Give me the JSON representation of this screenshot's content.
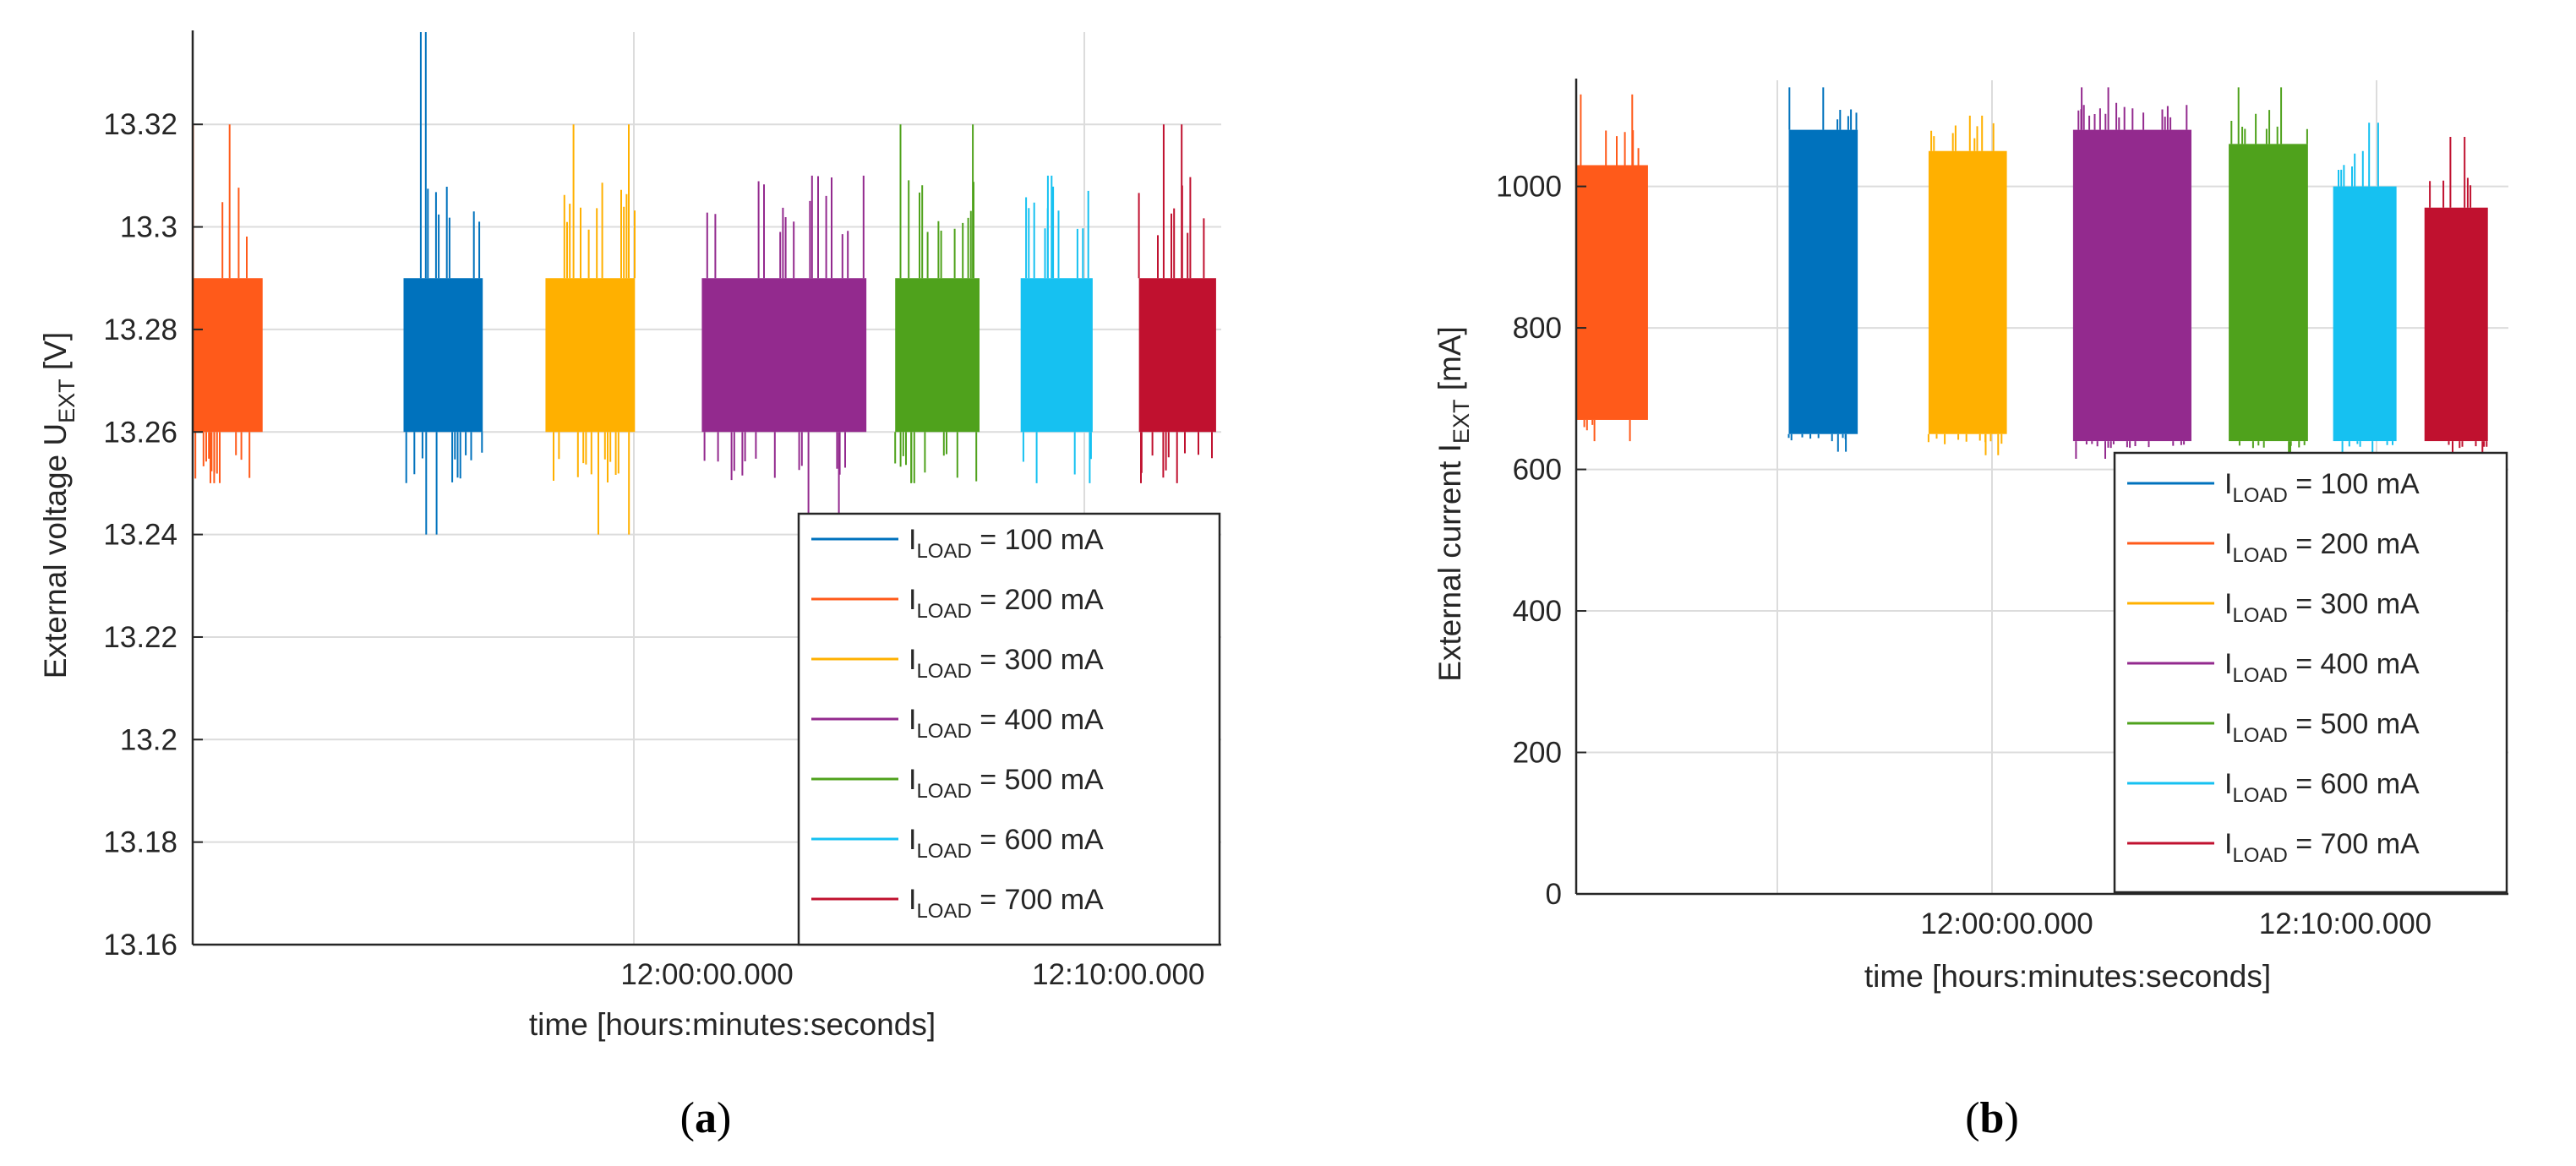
{
  "chart_data": [
    {
      "type": "line",
      "panel_label": "(a)",
      "ylabel_main": "External voltage U",
      "ylabel_sub": "EXT",
      "ylabel_unit": "[V]",
      "xlabel": "time [hours:minutes:seconds]",
      "ylim": [
        13.16,
        13.338
      ],
      "yticks": [
        "13.16",
        "13.18",
        "13.2",
        "13.22",
        "13.24",
        "13.26",
        "13.28",
        "13.3",
        "13.32"
      ],
      "xlim": [
        0,
        1
      ],
      "xticks": [
        {
          "x": 0.5,
          "label": "12:00:00.000"
        },
        {
          "x": 0.9,
          "label": "12:10:00.000"
        }
      ],
      "grid": true,
      "legend_position": "bottom-right",
      "series": [
        {
          "name": "I_LOAD = 100 mA",
          "label_main": "I",
          "label_sub": "LOAD",
          "label_rest": " = 100 mA",
          "color": "#0072BD",
          "x_range": [
            0.205,
            0.282
          ],
          "band": [
            13.26,
            13.29
          ],
          "outer": [
            13.25,
            13.31
          ],
          "extremes": [
            13.24,
            13.338
          ]
        },
        {
          "name": "I_LOAD = 200 mA",
          "label_main": "I",
          "label_sub": "LOAD",
          "label_rest": " = 200 mA",
          "color": "#FF5A1A",
          "x_range": [
            0.0,
            0.068
          ],
          "band": [
            13.26,
            13.29
          ],
          "outer": [
            13.25,
            13.31
          ],
          "extremes": [
            13.25,
            13.32
          ]
        },
        {
          "name": "I_LOAD = 300 mA",
          "label_main": "I",
          "label_sub": "LOAD",
          "label_rest": " = 300 mA",
          "color": "#FFB000",
          "x_range": [
            0.343,
            0.43
          ],
          "band": [
            13.26,
            13.29
          ],
          "outer": [
            13.25,
            13.31
          ],
          "extremes": [
            13.24,
            13.32
          ]
        },
        {
          "name": "I_LOAD = 400 mA",
          "label_main": "I",
          "label_sub": "LOAD",
          "label_rest": " = 400 mA",
          "color": "#932A8E",
          "x_range": [
            0.495,
            0.655
          ],
          "band": [
            13.26,
            13.29
          ],
          "outer": [
            13.25,
            13.31
          ],
          "extremes": [
            13.24,
            13.31
          ]
        },
        {
          "name": "I_LOAD = 500 mA",
          "label_main": "I",
          "label_sub": "LOAD",
          "label_rest": " = 500 mA",
          "color": "#4FA21C",
          "x_range": [
            0.683,
            0.765
          ],
          "band": [
            13.26,
            13.29
          ],
          "outer": [
            13.25,
            13.31
          ],
          "extremes": [
            13.25,
            13.32
          ]
        },
        {
          "name": "I_LOAD = 600 mA",
          "label_main": "I",
          "label_sub": "LOAD",
          "label_rest": " = 600 mA",
          "color": "#16C1F1",
          "x_range": [
            0.805,
            0.875
          ],
          "band": [
            13.26,
            13.29
          ],
          "outer": [
            13.25,
            13.31
          ],
          "extremes": [
            13.25,
            13.31
          ]
        },
        {
          "name": "I_LOAD = 700 mA",
          "label_main": "I",
          "label_sub": "LOAD",
          "label_rest": " = 700 mA",
          "color": "#C0112F",
          "x_range": [
            0.92,
            0.995
          ],
          "band": [
            13.26,
            13.29
          ],
          "outer": [
            13.25,
            13.31
          ],
          "extremes": [
            13.25,
            13.32
          ]
        }
      ]
    },
    {
      "type": "line",
      "panel_label": "(b)",
      "ylabel_main": "External current I",
      "ylabel_sub": "EXT",
      "ylabel_unit": "[mA]",
      "xlabel": "time [hours:minutes:seconds]",
      "ylim": [
        0,
        1150
      ],
      "yticks": [
        "0",
        "200",
        "400",
        "600",
        "800",
        "1000"
      ],
      "xlim": [
        0,
        1
      ],
      "xticks": [
        {
          "x": 0.462,
          "label": "12:00:00.000"
        },
        {
          "x": 0.825,
          "label": "12:10:00.000"
        }
      ],
      "grid": true,
      "legend_position": "bottom-right",
      "series": [
        {
          "name": "I_LOAD = 100 mA",
          "label_main": "I",
          "label_sub": "LOAD",
          "label_rest": " = 100 mA",
          "color": "#0072BD",
          "x_range": [
            0.228,
            0.302
          ],
          "band": [
            650,
            1080
          ],
          "outer": [
            640,
            1110
          ],
          "extremes": [
            625,
            1140
          ]
        },
        {
          "name": "I_LOAD = 200 mA",
          "label_main": "I",
          "label_sub": "LOAD",
          "label_rest": " = 200 mA",
          "color": "#FF5A1A",
          "x_range": [
            0.0,
            0.077
          ],
          "band": [
            670,
            1030
          ],
          "outer": [
            655,
            1080
          ],
          "extremes": [
            640,
            1130
          ]
        },
        {
          "name": "I_LOAD = 300 mA",
          "label_main": "I",
          "label_sub": "LOAD",
          "label_rest": " = 300 mA",
          "color": "#FFB000",
          "x_range": [
            0.378,
            0.462
          ],
          "band": [
            650,
            1050
          ],
          "outer": [
            635,
            1090
          ],
          "extremes": [
            620,
            1100
          ]
        },
        {
          "name": "I_LOAD = 400 mA",
          "label_main": "I",
          "label_sub": "LOAD",
          "label_rest": " = 400 mA",
          "color": "#932A8E",
          "x_range": [
            0.533,
            0.66
          ],
          "band": [
            640,
            1080
          ],
          "outer": [
            630,
            1120
          ],
          "extremes": [
            615,
            1140
          ]
        },
        {
          "name": "I_LOAD = 500 mA",
          "label_main": "I",
          "label_sub": "LOAD",
          "label_rest": " = 500 mA",
          "color": "#4FA21C",
          "x_range": [
            0.7,
            0.785
          ],
          "band": [
            640,
            1060
          ],
          "outer": [
            630,
            1110
          ],
          "extremes": [
            615,
            1140
          ]
        },
        {
          "name": "I_LOAD = 600 mA",
          "label_main": "I",
          "label_sub": "LOAD",
          "label_rest": " = 600 mA",
          "color": "#16C1F1",
          "x_range": [
            0.812,
            0.88
          ],
          "band": [
            640,
            1000
          ],
          "outer": [
            630,
            1050
          ],
          "extremes": [
            615,
            1090
          ]
        },
        {
          "name": "I_LOAD = 700 mA",
          "label_main": "I",
          "label_sub": "LOAD",
          "label_rest": " = 700 mA",
          "color": "#C0112F",
          "x_range": [
            0.91,
            0.978
          ],
          "band": [
            640,
            970
          ],
          "outer": [
            630,
            1030
          ],
          "extremes": [
            615,
            1070
          ]
        }
      ]
    }
  ]
}
